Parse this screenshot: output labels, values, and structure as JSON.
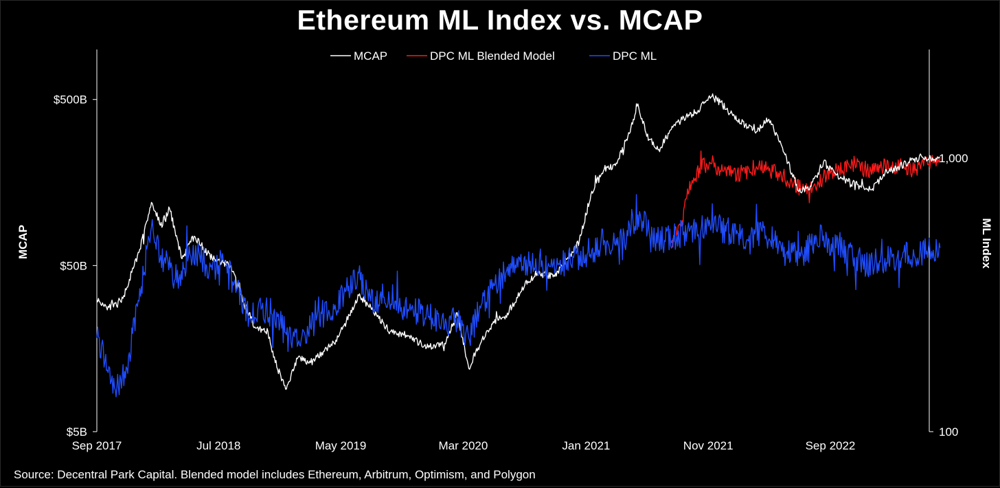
{
  "chart_data": {
    "type": "line",
    "title": "Ethereum ML Index vs. MCAP",
    "source": "Source: Decentral Park Capital. Blended model includes Ethereum, Arbitrum, Optimism, and Polygon",
    "ylabel_left": "MCAP",
    "ylabel_right": "ML Index",
    "y_left": {
      "scale": "log",
      "range": [
        5,
        1000
      ],
      "unit": "$B",
      "ticks": [
        5,
        50,
        500
      ],
      "tick_labels": [
        "$5B",
        "$50B",
        "$500B"
      ]
    },
    "y_right": {
      "scale": "log",
      "range": [
        100,
        1000
      ],
      "ticks": [
        100,
        1000
      ],
      "tick_labels": [
        "100",
        "1,000"
      ]
    },
    "x": {
      "range": [
        "2017-09",
        "2023-06"
      ],
      "ticks": [
        "2017-09",
        "2018-07",
        "2019-05",
        "2020-03",
        "2021-01",
        "2021-11",
        "2022-09"
      ],
      "tick_labels": [
        "Sep 2017",
        "Jul 2018",
        "May 2019",
        "Mar 2020",
        "Jan 2021",
        "Nov 2021",
        "Sep 2022"
      ]
    },
    "grid": false,
    "legend": {
      "placement": "top-center",
      "items": [
        {
          "label": "MCAP",
          "color": "#ffffff"
        },
        {
          "label": "DPC ML Blended Model",
          "color": "#ff1a1a"
        },
        {
          "label": "DPC ML",
          "color": "#1f4dff"
        }
      ]
    },
    "series": [
      {
        "name": "MCAP",
        "axis": "left",
        "color": "#ffffff",
        "points": [
          [
            "2017-09-01",
            31
          ],
          [
            "2017-10-01",
            28
          ],
          [
            "2017-11-01",
            30
          ],
          [
            "2017-12-15",
            60
          ],
          [
            "2018-01-15",
            120
          ],
          [
            "2018-02-10",
            85
          ],
          [
            "2018-03-01",
            110
          ],
          [
            "2018-04-01",
            55
          ],
          [
            "2018-05-01",
            75
          ],
          [
            "2018-06-15",
            55
          ],
          [
            "2018-08-01",
            50
          ],
          [
            "2018-09-01",
            30
          ],
          [
            "2018-10-01",
            21
          ],
          [
            "2018-11-01",
            20
          ],
          [
            "2018-11-15",
            14
          ],
          [
            "2018-12-15",
            9
          ],
          [
            "2019-01-15",
            14
          ],
          [
            "2019-02-15",
            13
          ],
          [
            "2019-03-15",
            15
          ],
          [
            "2019-04-15",
            17
          ],
          [
            "2019-05-15",
            23
          ],
          [
            "2019-06-15",
            33
          ],
          [
            "2019-07-15",
            28
          ],
          [
            "2019-09-01",
            20
          ],
          [
            "2019-10-15",
            19
          ],
          [
            "2019-12-01",
            16
          ],
          [
            "2020-01-15",
            17
          ],
          [
            "2020-02-15",
            26
          ],
          [
            "2020-03-15",
            12
          ],
          [
            "2020-04-01",
            15
          ],
          [
            "2020-05-15",
            23
          ],
          [
            "2020-06-15",
            25
          ],
          [
            "2020-08-01",
            38
          ],
          [
            "2020-09-01",
            45
          ],
          [
            "2020-10-15",
            43
          ],
          [
            "2020-11-15",
            55
          ],
          [
            "2020-12-15",
            70
          ],
          [
            "2021-01-15",
            140
          ],
          [
            "2021-02-15",
            190
          ],
          [
            "2021-03-15",
            200
          ],
          [
            "2021-04-15",
            300
          ],
          [
            "2021-05-10",
            470
          ],
          [
            "2021-06-01",
            300
          ],
          [
            "2021-07-01",
            250
          ],
          [
            "2021-08-01",
            330
          ],
          [
            "2021-09-01",
            390
          ],
          [
            "2021-10-01",
            420
          ],
          [
            "2021-11-10",
            520
          ],
          [
            "2021-12-01",
            480
          ],
          [
            "2022-01-01",
            400
          ],
          [
            "2022-02-01",
            350
          ],
          [
            "2022-03-01",
            320
          ],
          [
            "2022-04-01",
            380
          ],
          [
            "2022-05-01",
            270
          ],
          [
            "2022-06-15",
            140
          ],
          [
            "2022-07-15",
            150
          ],
          [
            "2022-08-15",
            210
          ],
          [
            "2022-09-15",
            175
          ],
          [
            "2022-10-15",
            160
          ],
          [
            "2022-11-15",
            150
          ],
          [
            "2022-12-15",
            145
          ],
          [
            "2023-01-15",
            180
          ],
          [
            "2023-02-15",
            195
          ],
          [
            "2023-03-15",
            210
          ],
          [
            "2023-04-15",
            230
          ],
          [
            "2023-05-15",
            215
          ],
          [
            "2023-06-01",
            225
          ]
        ]
      },
      {
        "name": "DPC ML Blended Model",
        "axis": "right",
        "color": "#ff1a1a",
        "points": [
          [
            "2021-08-01",
            490
          ],
          [
            "2021-08-20",
            570
          ],
          [
            "2021-09-01",
            650
          ],
          [
            "2021-09-20",
            800
          ],
          [
            "2021-10-10",
            920
          ],
          [
            "2021-11-10",
            960
          ],
          [
            "2021-12-01",
            900
          ],
          [
            "2022-01-01",
            880
          ],
          [
            "2022-02-01",
            880
          ],
          [
            "2022-03-01",
            930
          ],
          [
            "2022-04-01",
            900
          ],
          [
            "2022-05-01",
            880
          ],
          [
            "2022-06-01",
            800
          ],
          [
            "2022-07-01",
            760
          ],
          [
            "2022-08-01",
            820
          ],
          [
            "2022-09-01",
            880
          ],
          [
            "2022-10-01",
            900
          ],
          [
            "2022-11-01",
            960
          ],
          [
            "2022-12-01",
            900
          ],
          [
            "2023-01-01",
            940
          ],
          [
            "2023-02-01",
            920
          ],
          [
            "2023-03-01",
            930
          ],
          [
            "2023-04-01",
            900
          ],
          [
            "2023-05-01",
            950
          ],
          [
            "2023-06-01",
            1000
          ]
        ]
      },
      {
        "name": "DPC ML",
        "axis": "right",
        "color": "#1f4dff",
        "points": [
          [
            "2017-09-01",
            220
          ],
          [
            "2017-10-15",
            145
          ],
          [
            "2017-11-15",
            170
          ],
          [
            "2017-12-15",
            300
          ],
          [
            "2018-01-15",
            560
          ],
          [
            "2018-02-15",
            420
          ],
          [
            "2018-03-15",
            360
          ],
          [
            "2018-04-15",
            420
          ],
          [
            "2018-05-15",
            440
          ],
          [
            "2018-06-15",
            390
          ],
          [
            "2018-07-15",
            420
          ],
          [
            "2018-08-15",
            330
          ],
          [
            "2018-09-15",
            260
          ],
          [
            "2018-10-15",
            280
          ],
          [
            "2018-11-15",
            270
          ],
          [
            "2018-12-15",
            230
          ],
          [
            "2019-01-15",
            210
          ],
          [
            "2019-02-15",
            240
          ],
          [
            "2019-03-15",
            270
          ],
          [
            "2019-04-15",
            280
          ],
          [
            "2019-05-15",
            330
          ],
          [
            "2019-06-15",
            380
          ],
          [
            "2019-07-15",
            300
          ],
          [
            "2019-08-15",
            310
          ],
          [
            "2019-09-15",
            300
          ],
          [
            "2019-10-15",
            280
          ],
          [
            "2019-11-15",
            270
          ],
          [
            "2019-12-15",
            260
          ],
          [
            "2020-01-15",
            240
          ],
          [
            "2020-02-15",
            260
          ],
          [
            "2020-03-15",
            220
          ],
          [
            "2020-04-15",
            290
          ],
          [
            "2020-05-15",
            350
          ],
          [
            "2020-06-15",
            380
          ],
          [
            "2020-07-15",
            400
          ],
          [
            "2020-08-15",
            420
          ],
          [
            "2020-09-15",
            400
          ],
          [
            "2020-10-15",
            380
          ],
          [
            "2020-11-15",
            420
          ],
          [
            "2020-12-15",
            440
          ],
          [
            "2021-01-15",
            460
          ],
          [
            "2021-02-15",
            500
          ],
          [
            "2021-03-15",
            480
          ],
          [
            "2021-04-15",
            520
          ],
          [
            "2021-05-10",
            620
          ],
          [
            "2021-06-15",
            520
          ],
          [
            "2021-07-15",
            500
          ],
          [
            "2021-08-15",
            520
          ],
          [
            "2021-09-15",
            540
          ],
          [
            "2021-10-15",
            560
          ],
          [
            "2021-11-15",
            570
          ],
          [
            "2021-12-15",
            540
          ],
          [
            "2022-01-15",
            530
          ],
          [
            "2022-02-15",
            520
          ],
          [
            "2022-03-15",
            540
          ],
          [
            "2022-04-15",
            500
          ],
          [
            "2022-05-15",
            450
          ],
          [
            "2022-06-15",
            430
          ],
          [
            "2022-07-15",
            480
          ],
          [
            "2022-08-15",
            520
          ],
          [
            "2022-09-15",
            470
          ],
          [
            "2022-10-15",
            460
          ],
          [
            "2022-11-15",
            420
          ],
          [
            "2022-12-15",
            410
          ],
          [
            "2023-01-15",
            430
          ],
          [
            "2023-02-15",
            440
          ],
          [
            "2023-03-15",
            440
          ],
          [
            "2023-04-15",
            450
          ],
          [
            "2023-05-15",
            460
          ],
          [
            "2023-06-01",
            470
          ]
        ]
      }
    ]
  }
}
